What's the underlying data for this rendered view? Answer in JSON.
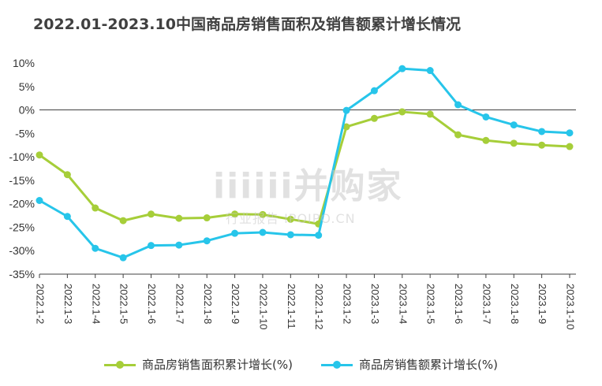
{
  "chart_data": {
    "type": "line",
    "title": "2022.01-2023.10中国商品房销售面积及销售额累计增长情况",
    "categories": [
      "2022.1-2",
      "2022.1-3",
      "2022.1-4",
      "2022.1-5",
      "2022.1-6",
      "2022.1-7",
      "2022.1-8",
      "2022.1-9",
      "2022.1-10",
      "2022.1-11",
      "2022.1-12",
      "2023.1-2",
      "2023.1-3",
      "2023.1-4",
      "2023.1-5",
      "2023.1-6",
      "2023.1-7",
      "2023.1-8",
      "2023.1-9",
      "2023.1-10"
    ],
    "series": [
      {
        "name": "商品房销售面积累计增长(%)",
        "color": "#a6ce39",
        "values": [
          -9.6,
          -13.8,
          -20.9,
          -23.6,
          -22.2,
          -23.1,
          -23.0,
          -22.2,
          -22.3,
          -23.3,
          -24.3,
          -3.6,
          -1.8,
          -0.4,
          -0.9,
          -5.3,
          -6.5,
          -7.1,
          -7.5,
          -7.8
        ]
      },
      {
        "name": "商品房销售额累计增长(%)",
        "color": "#27c5ea",
        "values": [
          -19.3,
          -22.7,
          -29.5,
          -31.5,
          -28.9,
          -28.8,
          -27.9,
          -26.3,
          -26.1,
          -26.6,
          -26.7,
          -0.1,
          4.1,
          8.8,
          8.4,
          1.1,
          -1.5,
          -3.2,
          -4.6,
          -4.9
        ]
      }
    ],
    "ylim": [
      -35,
      10
    ],
    "yticks": [
      10,
      5,
      0,
      -5,
      -10,
      -15,
      -20,
      -25,
      -30,
      -35
    ],
    "ytick_labels": [
      "10%",
      "5%",
      "0%",
      "-5%",
      "-10%",
      "-15%",
      "-20%",
      "-25%",
      "-30%",
      "-35%"
    ],
    "grid": false,
    "legend": "bottom"
  },
  "watermark": {
    "main": "iiiiii并购家",
    "sub": "行业报告 IPOIPO.CN"
  }
}
